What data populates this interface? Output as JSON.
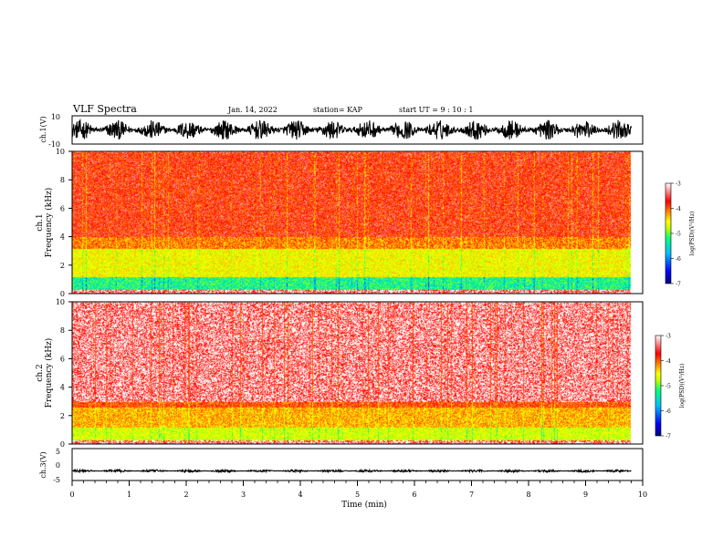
{
  "header": {
    "title": "VLF Spectra",
    "date": "Jan. 14, 2022",
    "station": "station= KAP",
    "start_ut": "start UT =  9 : 10 : 1"
  },
  "panels": {
    "ch1_wave": {
      "ylabel": "ch.1(V)",
      "ylim": [
        -10,
        10
      ],
      "yticks": [
        "10",
        "-10"
      ]
    },
    "ch1_spec": {
      "ylabel_top": "ch.1",
      "ylabel_bottom": "Frequency (kHz)",
      "ylim": [
        0,
        10
      ],
      "yticks": [
        "0",
        "2",
        "4",
        "6",
        "8",
        "10"
      ],
      "colorbar": {
        "label": "log(PSD)(V²/Hz)",
        "ticks": [
          "-3",
          "-4",
          "-5",
          "-6",
          "-7"
        ],
        "range": [
          -7,
          -3
        ]
      }
    },
    "ch2_spec": {
      "ylabel_top": "ch.2",
      "ylabel_bottom": "Frequency (kHz)",
      "ylim": [
        0,
        10
      ],
      "yticks": [
        "0",
        "2",
        "4",
        "6",
        "8",
        "10"
      ],
      "colorbar": {
        "label": "log(PSD)(V²/Hz)",
        "ticks": [
          "-3",
          "-4",
          "-5",
          "-6",
          "-7"
        ],
        "range": [
          -7,
          -3
        ]
      }
    },
    "ch3_wave": {
      "ylabel": "ch.3(V)",
      "ylim": [
        -5,
        5
      ],
      "yticks": [
        "5",
        "0",
        "-5"
      ]
    }
  },
  "xaxis": {
    "label": "Time (min)",
    "ticks": [
      "0",
      "1",
      "2",
      "3",
      "4",
      "5",
      "6",
      "7",
      "8",
      "9",
      "10"
    ],
    "xlim": [
      0,
      10
    ]
  },
  "colors": {
    "colormap": [
      "#000080",
      "#0000ff",
      "#00c0ff",
      "#00ff80",
      "#c0ff00",
      "#ffff00",
      "#ff8000",
      "#ff0000",
      "#ffffff"
    ]
  },
  "chart_data": {
    "type": "heatmap",
    "title": "VLF Spectra",
    "xlabel": "Time (min)",
    "xlim": [
      0,
      9.8
    ],
    "panels": [
      {
        "name": "ch.1(V)",
        "kind": "waveform",
        "ylim": [
          -10,
          10
        ],
        "typical_amplitude": 7
      },
      {
        "name": "ch.1",
        "kind": "spectrogram",
        "ylabel": "Frequency (kHz)",
        "ylim": [
          0,
          10
        ],
        "bands": [
          {
            "freq": [
              0.3,
              1.2
            ],
            "log_psd": -5.5
          },
          {
            "freq": [
              1.2,
              3.2
            ],
            "log_psd": -4.6
          },
          {
            "freq": [
              3.2,
              4.0
            ],
            "log_psd": -4.0
          },
          {
            "freq": [
              4.0,
              10.0
            ],
            "log_psd": -3.6
          }
        ]
      },
      {
        "name": "ch.2",
        "kind": "spectrogram",
        "ylabel": "Frequency (kHz)",
        "ylim": [
          0,
          10
        ],
        "bands": [
          {
            "freq": [
              0.3,
              1.2
            ],
            "log_psd": -4.8
          },
          {
            "freq": [
              1.2,
              2.6
            ],
            "log_psd": -4.2
          },
          {
            "freq": [
              2.6,
              3.0
            ],
            "log_psd": -3.8
          },
          {
            "freq": [
              3.0,
              10.0
            ],
            "log_psd": -3.2
          }
        ]
      },
      {
        "name": "ch.3(V)",
        "kind": "waveform",
        "ylim": [
          -5,
          5
        ],
        "typical_amplitude": 0.4,
        "offset": -2
      }
    ]
  }
}
